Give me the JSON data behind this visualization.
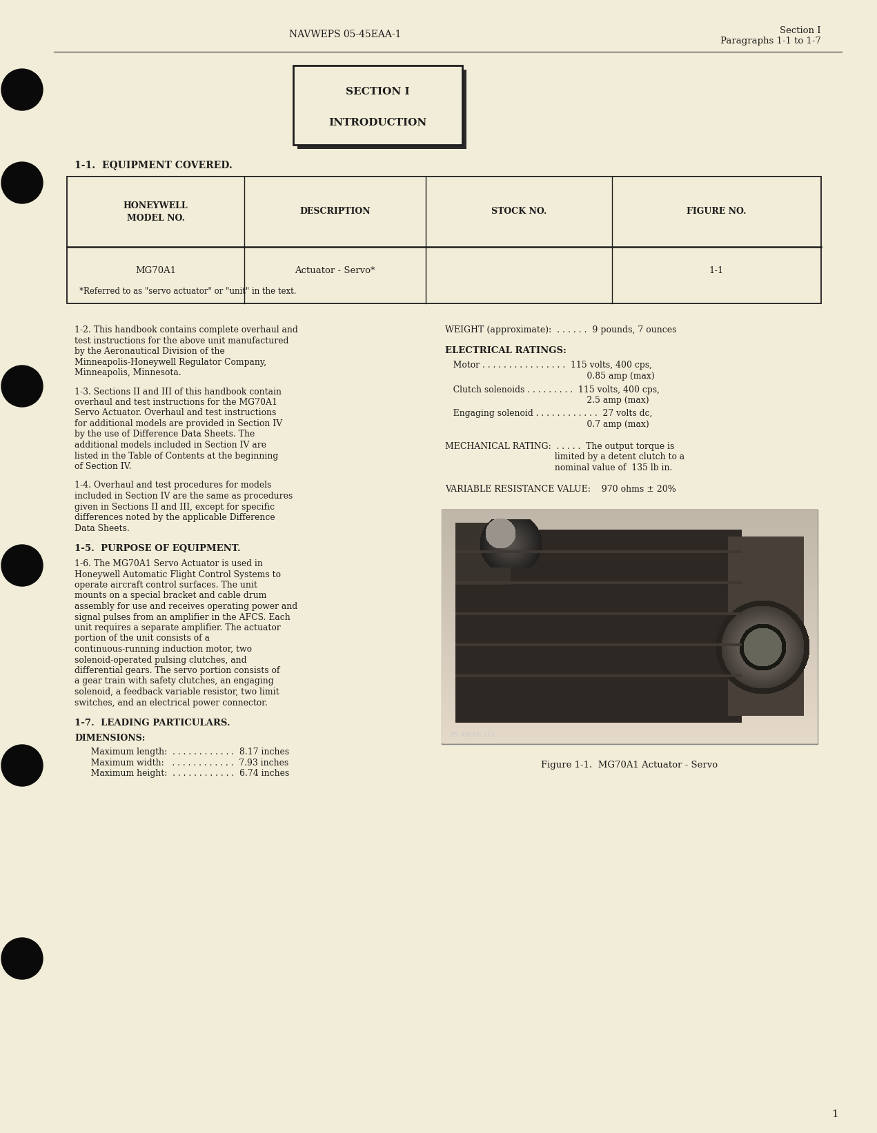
{
  "bg_color": "#f2edd8",
  "text_color": "#1e1e1e",
  "header_left": "NAVWEPS 05-45EAA-1",
  "header_right1": "Section I",
  "header_right2": "Paragraphs 1-1 to 1-7",
  "section_box_line1": "SECTION I",
  "section_box_line2": "INTRODUCTION",
  "heading_1_1": "1-1.  EQUIPMENT COVERED.",
  "table_col1_h1": "HONEYWELL",
  "table_col1_h2": "MODEL NO.",
  "table_col2_h": "DESCRIPTION",
  "table_col3_h": "STOCK NO.",
  "table_col4_h": "FIGURE NO.",
  "table_d1": "MG70A1",
  "table_d2": "Actuator - Servo*",
  "table_d3": "",
  "table_d4": "1-1",
  "table_note": "*Referred to as \"servo actuator\" or \"unit\" in the text.",
  "para_1_2": "1-2.  This handbook contains complete overhaul and test instructions for the above unit manufactured by the Aeronautical Division of the Minneapolis-Honeywell Regulator Company, Minneapolis, Minnesota.",
  "para_1_3": "1-3.  Sections II and III of this handbook contain overhaul and test instructions for the MG70A1 Servo Actuator.  Overhaul and test instructions for additional models are provided in Section IV by the use of Difference Data Sheets.  The additional models included in Section IV are listed in the Table of Contents at the beginning of Section IV.",
  "para_1_4": "1-4.  Overhaul and test procedures for models included in Section IV are the same as procedures given in Sections II and III, except for specific differences noted by the applicable Difference Data Sheets.",
  "heading_1_5": "1-5.  PURPOSE OF EQUIPMENT.",
  "para_1_6": "1-6.  The MG70A1 Servo Actuator is used in Honeywell Automatic Flight Control Systems to operate aircraft control surfaces.  The unit mounts on a special bracket and cable drum assembly for use and receives operating power and signal pulses from an amplifier in the AFCS.  Each unit requires a separate amplifier.  The actuator portion of the unit consists of a continuous-running induction motor, two solenoid-operated pulsing clutches, and differential gears.  The servo portion consists of a gear train with safety clutches, an engaging solenoid, a feedback variable resistor, two limit switches, and an electrical power connector.",
  "heading_1_7": "1-7.  LEADING PARTICULARS.",
  "heading_dim": "DIMENSIONS:",
  "dim_lines": [
    "   Maximum length:  . . . . . . . . . . . .  8.17 inches",
    "   Maximum width:   . . . . . . . . . . . .  7.93 inches",
    "   Maximum height:  . . . . . . . . . . . .  6.74 inches"
  ],
  "weight_line": "WEIGHT (approximate):  . . . . . .  9 pounds, 7 ounces",
  "heading_elec": "ELECTRICAL RATINGS:",
  "motor_l1": "   Motor . . . . . . . . . . . . . . . .  115 volts, 400 cps,",
  "motor_l2": "                                                     0.85 amp (max)",
  "clutch_l1": "   Clutch solenoids . . . . . . . . .  115 volts, 400 cps,",
  "clutch_l2": "                                                     2.5 amp (max)",
  "engaging_l1": "   Engaging solenoid . . . . . . . . . . . .  27 volts dc,",
  "engaging_l2": "                                                     0.7 amp (max)",
  "mech_l1": "MECHANICAL RATING:  . . . . .  The output torque is",
  "mech_l2": "                                         limited by a detent clutch to a",
  "mech_l3": "                                         nominal value of  135 lb in.",
  "var_line": "VARIABLE RESISTANCE VALUE:    970 ohms ± 20%",
  "fig_caption": "Figure 1-1.  MG70A1 Actuator - Servo",
  "fig_sublabel": "05-45EAA-1/1",
  "page_num": "1",
  "circles_y": [
    130,
    265,
    560,
    820,
    1110,
    1390
  ]
}
